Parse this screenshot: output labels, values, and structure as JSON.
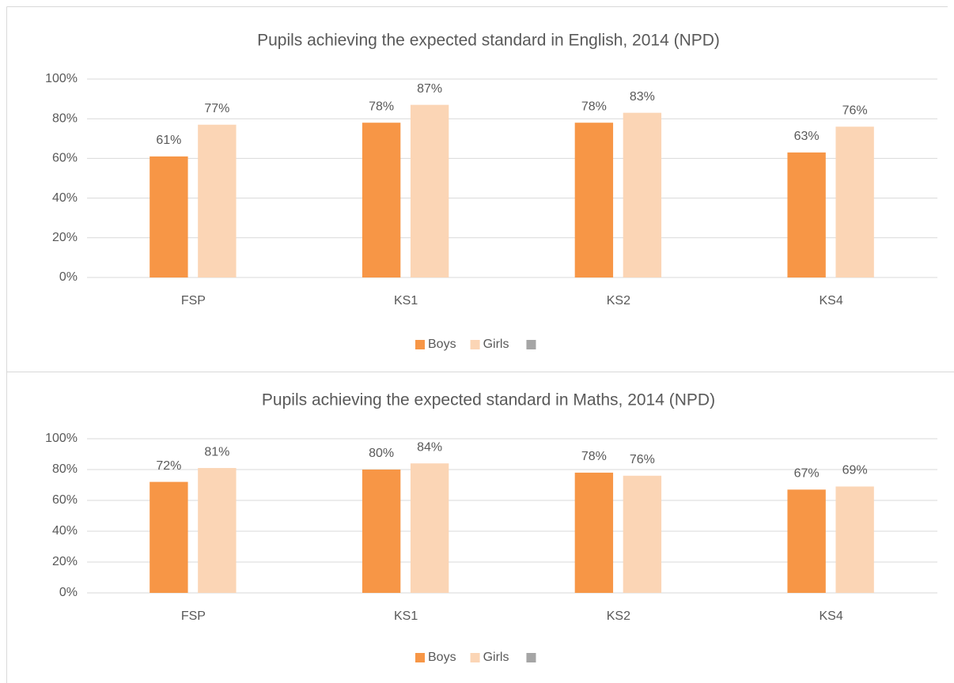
{
  "chart_data": [
    {
      "type": "bar",
      "title": "Pupils achieving the expected standard in English, 2014 (NPD)",
      "categories": [
        "FSP",
        "KS1",
        "KS2",
        "KS4"
      ],
      "series": [
        {
          "name": "Boys",
          "color": "#f79646",
          "values": [
            61,
            78,
            78,
            63
          ],
          "value_labels": [
            "61%",
            "78%",
            "78%",
            "63%"
          ]
        },
        {
          "name": "Girls",
          "color": "#fbd5b5",
          "values": [
            77,
            87,
            83,
            76
          ],
          "value_labels": [
            "77%",
            "87%",
            "83%",
            "76%"
          ]
        }
      ],
      "ylim": [
        0,
        100
      ],
      "yticks": [
        {
          "value": 0,
          "label": "0%"
        },
        {
          "value": 20,
          "label": "20%"
        },
        {
          "value": 40,
          "label": "40%"
        },
        {
          "value": 60,
          "label": "60%"
        },
        {
          "value": 80,
          "label": "80%"
        },
        {
          "value": 100,
          "label": "100%"
        }
      ],
      "grid": true,
      "legend": "bottom"
    },
    {
      "type": "bar",
      "title": "Pupils achieving the expected standard in Maths, 2014 (NPD)",
      "categories": [
        "FSP",
        "KS1",
        "KS2",
        "KS4"
      ],
      "series": [
        {
          "name": "Boys",
          "color": "#f79646",
          "values": [
            72,
            80,
            78,
            67
          ],
          "value_labels": [
            "72%",
            "80%",
            "78%",
            "67%"
          ]
        },
        {
          "name": "Girls",
          "color": "#fbd5b5",
          "values": [
            81,
            84,
            76,
            69
          ],
          "value_labels": [
            "81%",
            "84%",
            "76%",
            "69%"
          ]
        }
      ],
      "ylim": [
        0,
        100
      ],
      "yticks": [
        {
          "value": 0,
          "label": "0%"
        },
        {
          "value": 20,
          "label": "20%"
        },
        {
          "value": 40,
          "label": "40%"
        },
        {
          "value": 60,
          "label": "60%"
        },
        {
          "value": 80,
          "label": "80%"
        },
        {
          "value": 100,
          "label": "100%"
        }
      ],
      "grid": true,
      "legend": "bottom"
    }
  ]
}
